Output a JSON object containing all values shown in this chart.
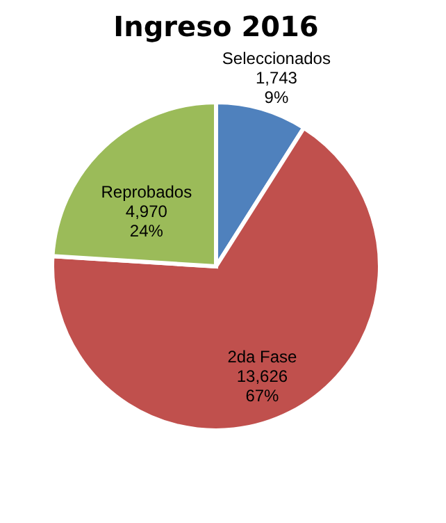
{
  "chart_data": {
    "type": "pie",
    "title": "Ingreso 2016",
    "categories": [
      "Seleccionados",
      "2da Fase",
      "Reprobados"
    ],
    "values": [
      9,
      67,
      24
    ],
    "colors": [
      "#4f81bd",
      "#c0504d",
      "#9bbb59"
    ],
    "value_labels": [
      [
        "1,743",
        "9%"
      ],
      [
        "13,626",
        "67%"
      ],
      [
        "4,970",
        "24%"
      ]
    ],
    "legend": false
  }
}
